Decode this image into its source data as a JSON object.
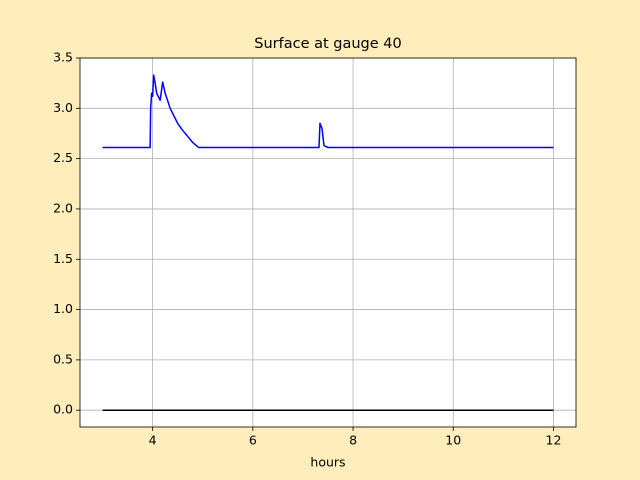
{
  "chart_data": {
    "type": "line",
    "title": "Surface at gauge 40",
    "xlabel": "hours",
    "xlim": [
      2.55,
      12.45
    ],
    "ylim": [
      -0.167,
      3.5
    ],
    "xticks": [
      4,
      6,
      8,
      10,
      12
    ],
    "yticks": [
      {
        "value": 0,
        "label": "0.0"
      },
      {
        "value": 0.5,
        "label": "0.5"
      },
      {
        "value": 1,
        "label": "1.0"
      },
      {
        "value": 1.5,
        "label": "1.5"
      },
      {
        "value": 2,
        "label": "2.0"
      },
      {
        "value": 2.5,
        "label": "2.5"
      },
      {
        "value": 3,
        "label": "3.0"
      },
      {
        "value": 3.5,
        "label": "3.5"
      }
    ],
    "grid": true,
    "series": [
      {
        "color": "#0000ff",
        "x": [
          3.0,
          3.95,
          3.96,
          3.98,
          4.0,
          4.02,
          4.05,
          4.08,
          4.15,
          4.2,
          4.25,
          4.35,
          4.5,
          4.6,
          4.8,
          4.92,
          7.32,
          7.34,
          7.38,
          7.42,
          7.5,
          12.0
        ],
        "values": [
          2.61,
          2.61,
          3.0,
          3.15,
          3.12,
          3.33,
          3.25,
          3.15,
          3.08,
          3.26,
          3.15,
          3.0,
          2.85,
          2.78,
          2.66,
          2.61,
          2.61,
          2.85,
          2.8,
          2.63,
          2.61,
          2.61
        ]
      },
      {
        "color": "#000000",
        "x": [
          3.0,
          12.0
        ],
        "values": [
          0,
          0
        ]
      }
    ]
  }
}
